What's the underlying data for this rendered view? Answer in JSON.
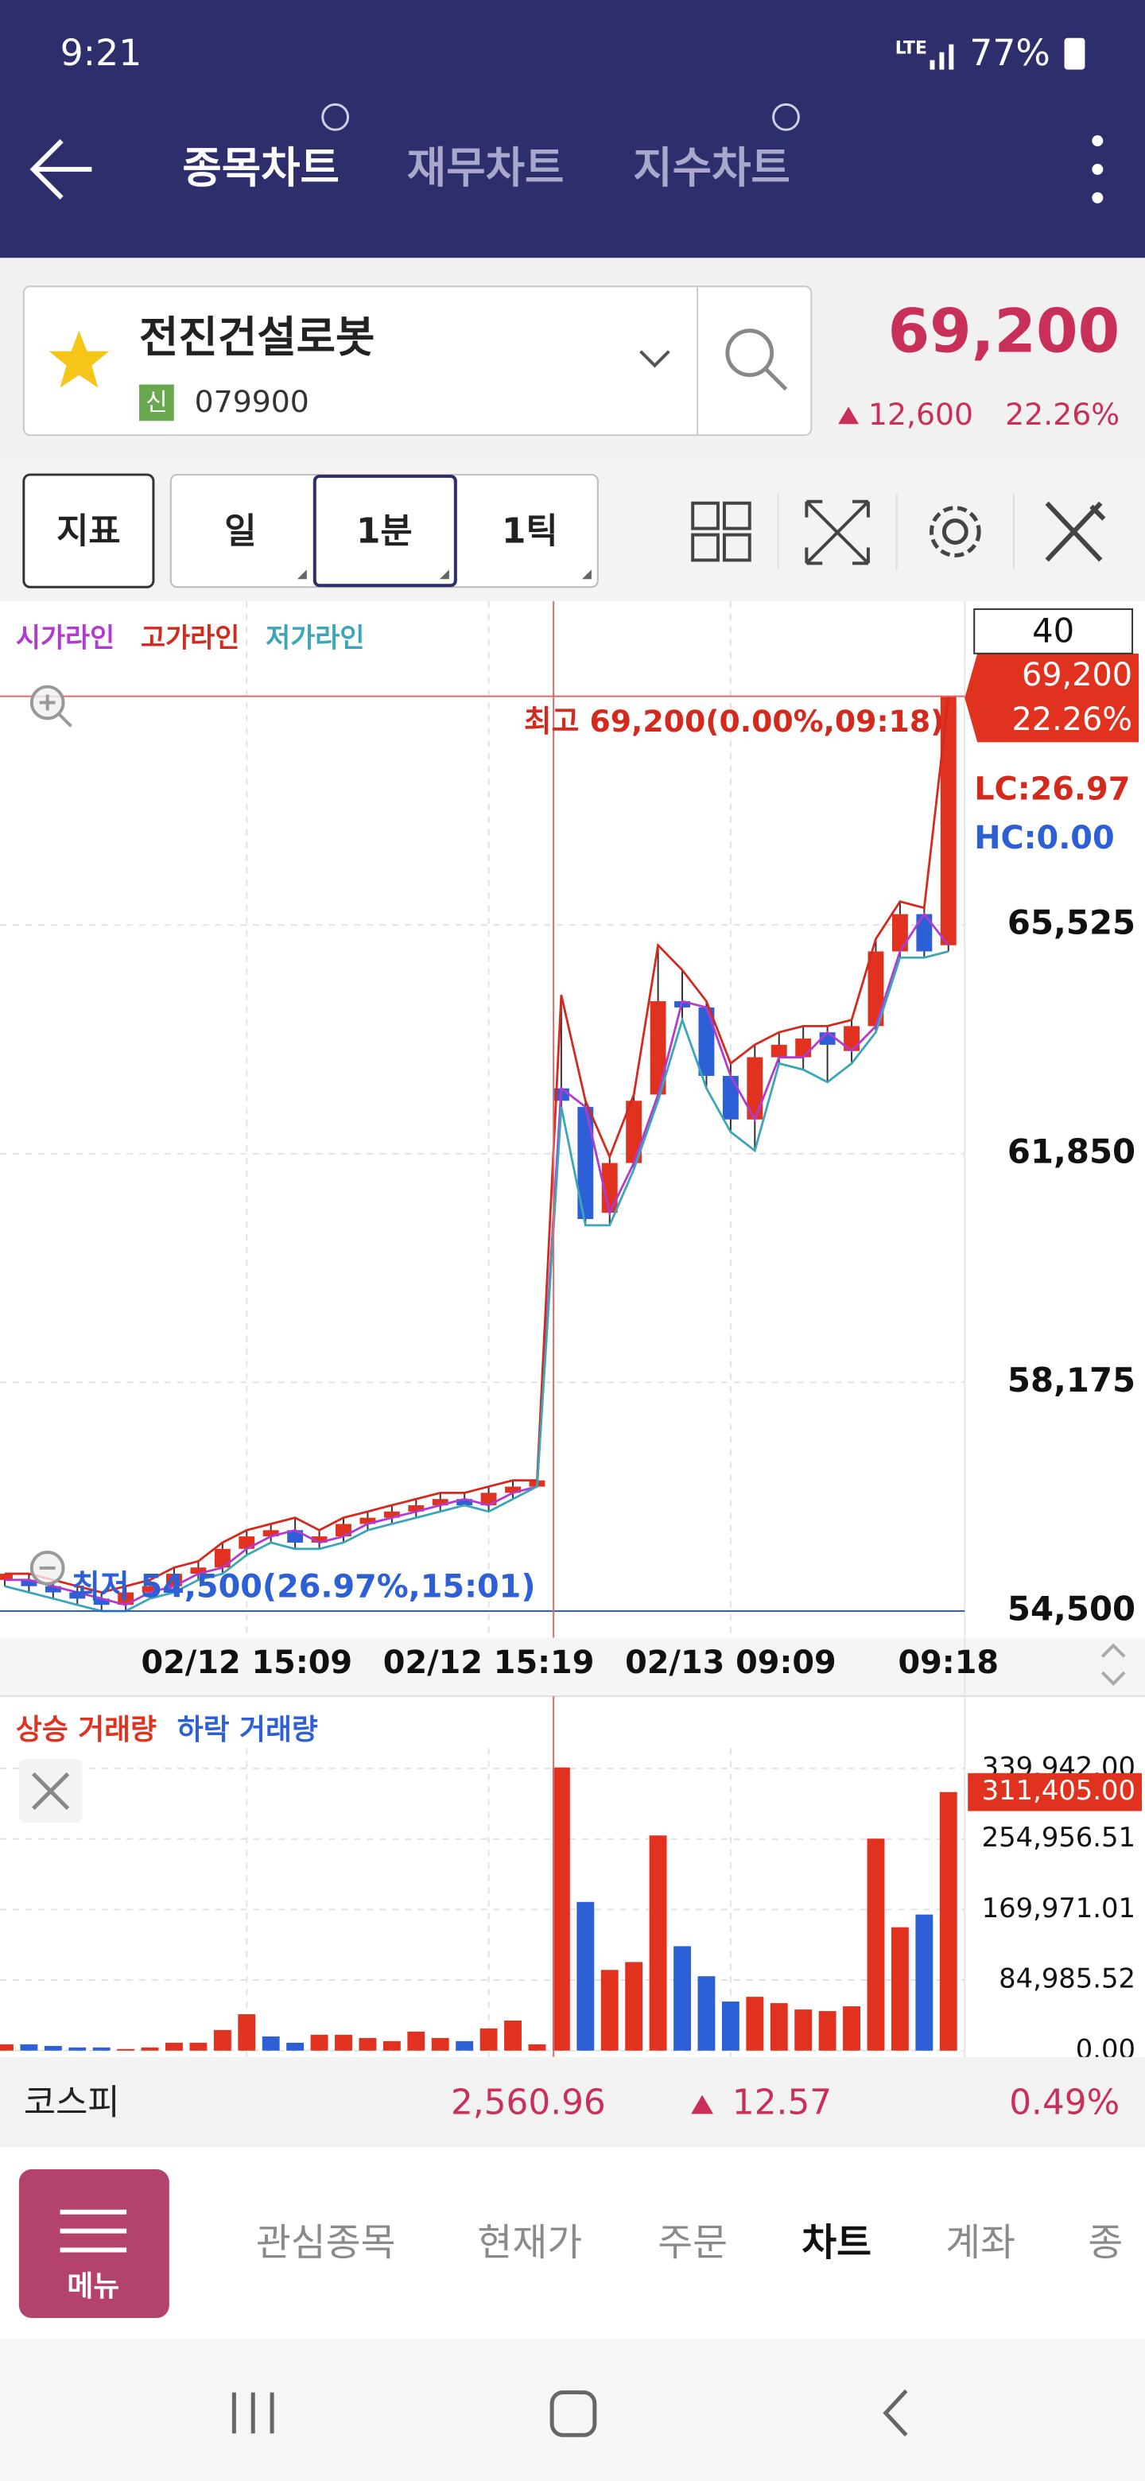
{
  "status_bar": {
    "time": "9:21",
    "network": "LTE",
    "battery": "77%"
  },
  "tabs": [
    "종목차트",
    "재무차트",
    "지수차트"
  ],
  "stock": {
    "name": "전진건설로봇",
    "badge": "신",
    "code": "079900",
    "price": "69,200",
    "change": "12,600",
    "change_pct": "22.26%"
  },
  "toolbar": {
    "indicator": "지표",
    "periods": [
      "일",
      "1분",
      "1틱"
    ]
  },
  "chart_data": [
    {
      "type": "candlestick",
      "legend": [
        {
          "name": "시가라인",
          "color": "#b23ad0"
        },
        {
          "name": "고가라인",
          "color": "#d42a1e"
        },
        {
          "name": "저가라인",
          "color": "#3aa6b8"
        }
      ],
      "categories": [
        null,
        null,
        null,
        null,
        null,
        null,
        null,
        null,
        null,
        null,
        "02/12 15:09",
        null,
        null,
        null,
        null,
        null,
        null,
        null,
        null,
        null,
        "02/12 15:19",
        null,
        null,
        null,
        null,
        null,
        null,
        null,
        null,
        null,
        "02/13 09:09",
        null,
        null,
        null,
        null,
        null,
        null,
        null,
        null,
        "09:18"
      ],
      "open": [
        55000,
        55000,
        54900,
        54800,
        54700,
        54600,
        54800,
        54900,
        55100,
        55200,
        55500,
        55700,
        55800,
        55600,
        55700,
        55900,
        56000,
        56100,
        56200,
        56300,
        56200,
        56400,
        56500,
        62900,
        62600,
        60900,
        61700,
        62800,
        64300,
        64200,
        63100,
        62400,
        63400,
        63400,
        63800,
        63500,
        63900,
        65100,
        65700,
        65200
      ],
      "high": [
        55100,
        55100,
        55000,
        54900,
        54800,
        54900,
        55000,
        55200,
        55300,
        55600,
        55800,
        55900,
        56000,
        55800,
        56000,
        56100,
        56200,
        56300,
        56400,
        56400,
        56500,
        56600,
        56600,
        64400,
        62700,
        61800,
        62800,
        65200,
        64800,
        64300,
        63300,
        63600,
        63800,
        63900,
        63900,
        64000,
        65300,
        65900,
        65800,
        69200
      ],
      "low": [
        54900,
        54800,
        54700,
        54600,
        54500,
        54500,
        54700,
        54800,
        55000,
        55100,
        55400,
        55600,
        55500,
        55500,
        55600,
        55800,
        55900,
        56000,
        56100,
        56200,
        56100,
        56300,
        56500,
        62600,
        60700,
        60700,
        61600,
        62700,
        64000,
        62900,
        62200,
        61900,
        63300,
        63200,
        63000,
        63300,
        63800,
        65000,
        65000,
        65100
      ],
      "close": [
        55100,
        54900,
        54800,
        54700,
        54600,
        54800,
        54900,
        55100,
        55200,
        55500,
        55700,
        55800,
        55600,
        55700,
        55900,
        56000,
        56100,
        56200,
        56300,
        56200,
        56400,
        56500,
        56600,
        62700,
        60800,
        61700,
        62700,
        64300,
        64200,
        63100,
        62400,
        63400,
        63600,
        63700,
        63600,
        63900,
        65100,
        65700,
        65100,
        69200
      ],
      "up_color": "#e0321f",
      "down_color": "#2d5fd6",
      "ylim": [
        54200,
        70600
      ],
      "yticks": [
        {
          "value": 54500,
          "label": "54,500"
        },
        {
          "value": 58175,
          "label": "58,175"
        },
        {
          "value": 61850,
          "label": "61,850"
        },
        {
          "value": 65525,
          "label": "65,525"
        }
      ],
      "grid": true,
      "visible_count": 40,
      "price_tag": {
        "value": 69200,
        "label": "69,200",
        "change": "22.26%"
      },
      "high_note": {
        "value": 69200,
        "label": "최고 69,200(0.00%,09:18)"
      },
      "low_note": {
        "value": 54500,
        "label": "최저 54,500(26.97%,15:01)"
      },
      "lc": "LC:26.97",
      "hc": "HC:0.00"
    },
    {
      "type": "bar",
      "series": [
        {
          "name": "상승 거래량",
          "color": "#e0321f",
          "values": [
            7600,
            null,
            null,
            null,
            null,
            1900,
            3800,
            9500,
            9500,
            24800,
            43800,
            null,
            null,
            19100,
            19100,
            15200,
            11400,
            22900,
            15200,
            null,
            26700,
            36200,
            7600,
            341000,
            null,
            97200,
            106700,
            259100,
            null,
            null,
            null,
            64800,
            57200,
            49500,
            47600,
            53400,
            255300,
            148600,
            null,
            311405
          ]
        },
        {
          "name": "하락 거래량",
          "color": "#2d5fd6",
          "values": [
            null,
            7600,
            5700,
            3800,
            3800,
            null,
            null,
            null,
            null,
            null,
            null,
            17100,
            9500,
            null,
            null,
            null,
            null,
            null,
            null,
            11400,
            null,
            null,
            null,
            null,
            179100,
            null,
            null,
            null,
            125800,
            89600,
            59100,
            null,
            null,
            null,
            null,
            null,
            null,
            null,
            163900,
            null
          ]
        }
      ],
      "ylim": [
        0,
        364000
      ],
      "yticks": [
        {
          "value": 0,
          "label": "0.00"
        },
        {
          "value": 84985.52,
          "label": "84,985.52"
        },
        {
          "value": 169971.01,
          "label": "169,971.01"
        },
        {
          "value": 254956.51,
          "label": "254,956.51"
        },
        {
          "value": 339942,
          "label": "339,942.00"
        }
      ],
      "grid": true,
      "value_tag": {
        "value": 311405,
        "label": "311,405.00"
      }
    }
  ],
  "index_ticker": {
    "name": "코스피",
    "value": "2,560.96",
    "change": "12.57",
    "change_pct": "0.49%"
  },
  "bottom_nav": {
    "menu": "메뉴",
    "items": [
      "관심종목",
      "현재가",
      "주문",
      "차트",
      "계좌",
      "종"
    ]
  }
}
